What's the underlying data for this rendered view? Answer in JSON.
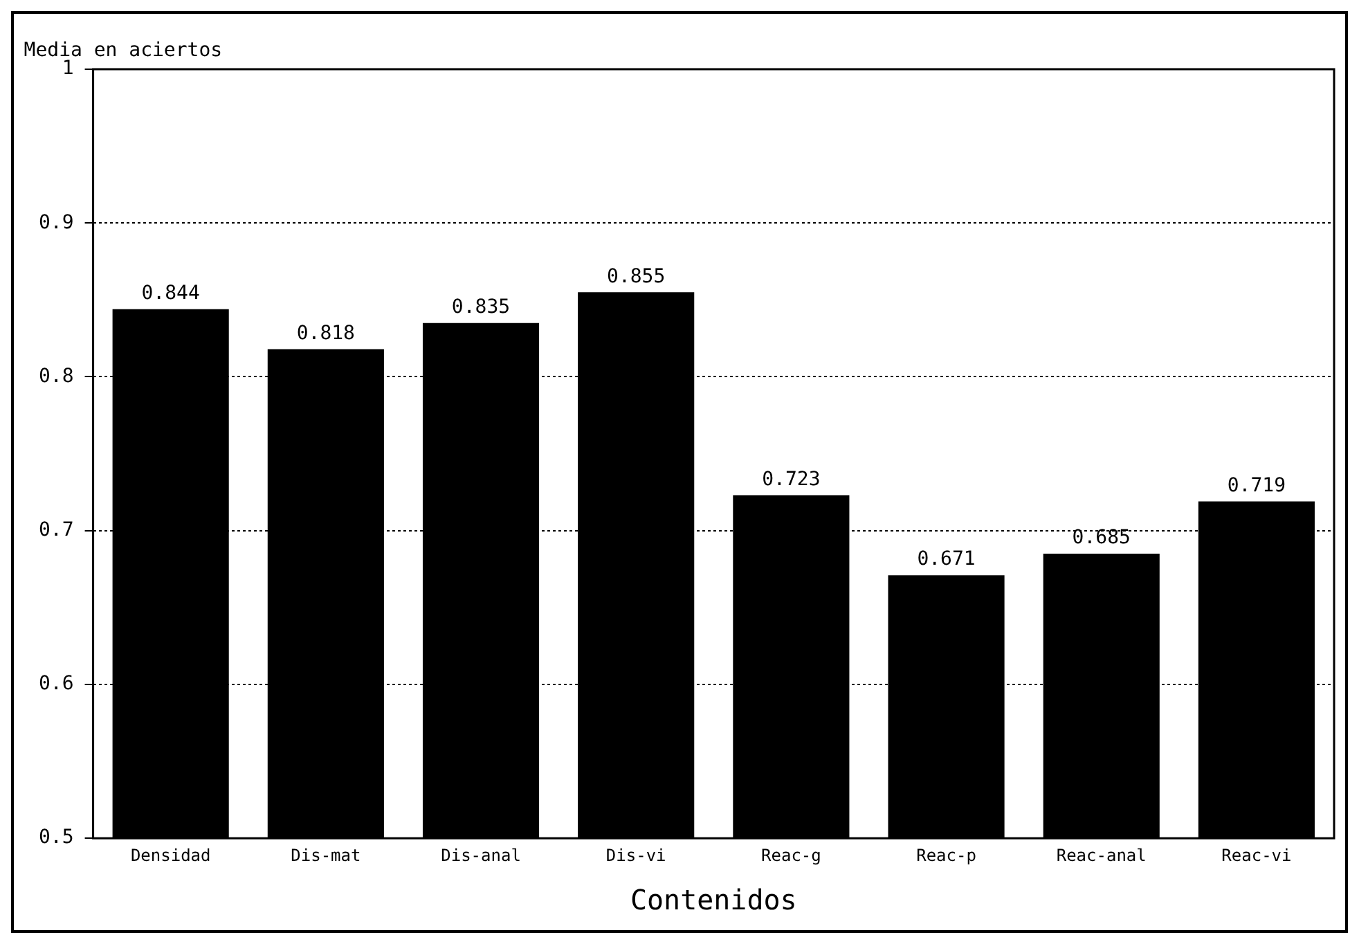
{
  "chart_data": {
    "type": "bar",
    "ylabel": "Media en aciertos",
    "xlabel": "Contenidos",
    "categories": [
      "Densidad",
      "Dis-mat",
      "Dis-anal",
      "Dis-vi",
      "Reac-g",
      "Reac-p",
      "Reac-anal",
      "Reac-vi"
    ],
    "values": [
      0.844,
      0.818,
      0.835,
      0.855,
      0.723,
      0.671,
      0.685,
      0.719
    ],
    "color": "#000000",
    "ylim": [
      0.5,
      1
    ],
    "yticks": [
      0.5,
      0.6,
      0.7,
      0.8,
      0.9,
      1
    ],
    "grid": "y",
    "data_labels": true,
    "legend": false
  }
}
